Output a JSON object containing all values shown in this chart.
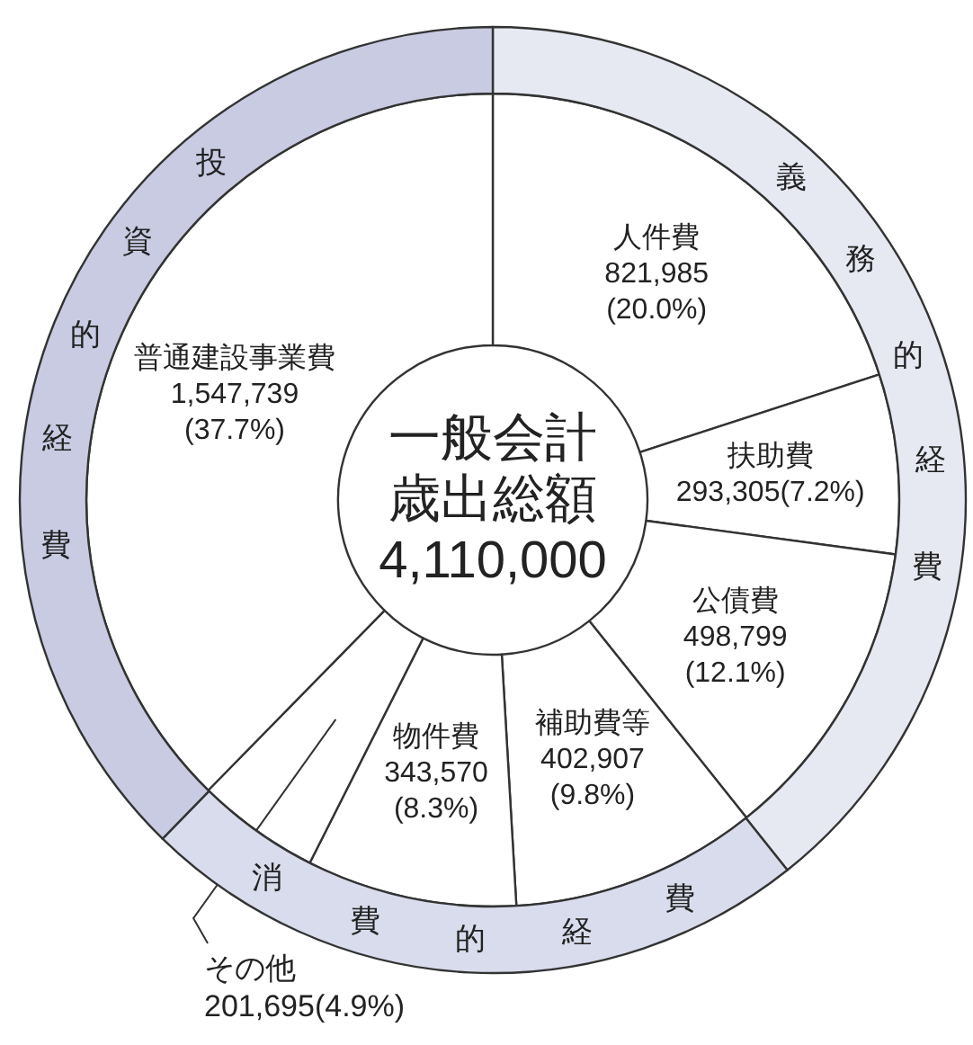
{
  "chart_data": [
    {
      "type": "donut",
      "categories": [
        "人件費",
        "扶助費",
        "公債費",
        "補助費等",
        "物件費",
        "その他",
        "普通建設事業費"
      ],
      "values": [
        821985,
        293305,
        498799,
        402907,
        343570,
        201695,
        1547739
      ],
      "value_labels": [
        "821,985(20.0%)",
        "293,305(7.2%)",
        "498,799(12.1%)",
        "402,907(9.8%)",
        "343,570(8.3%)",
        "201,695(4.9%)",
        "1,547,739(37.7%)"
      ],
      "colors": [
        "#ffffff",
        "#ffffff",
        "#ffffff",
        "#ffffff",
        "#ffffff",
        "#ffffff",
        "#ffffff"
      ],
      "annotations": [
        "一般会計",
        "歳出総額",
        "4,110,000"
      ]
    },
    {
      "type": "donut",
      "categories": [
        "義務的経費",
        "消費的経費",
        "投資的経費"
      ],
      "values": [
        39.3,
        23.0,
        37.7
      ],
      "colors": [
        "#e6e8f2",
        "#d9dcec",
        "#c8cbe2"
      ]
    }
  ]
}
